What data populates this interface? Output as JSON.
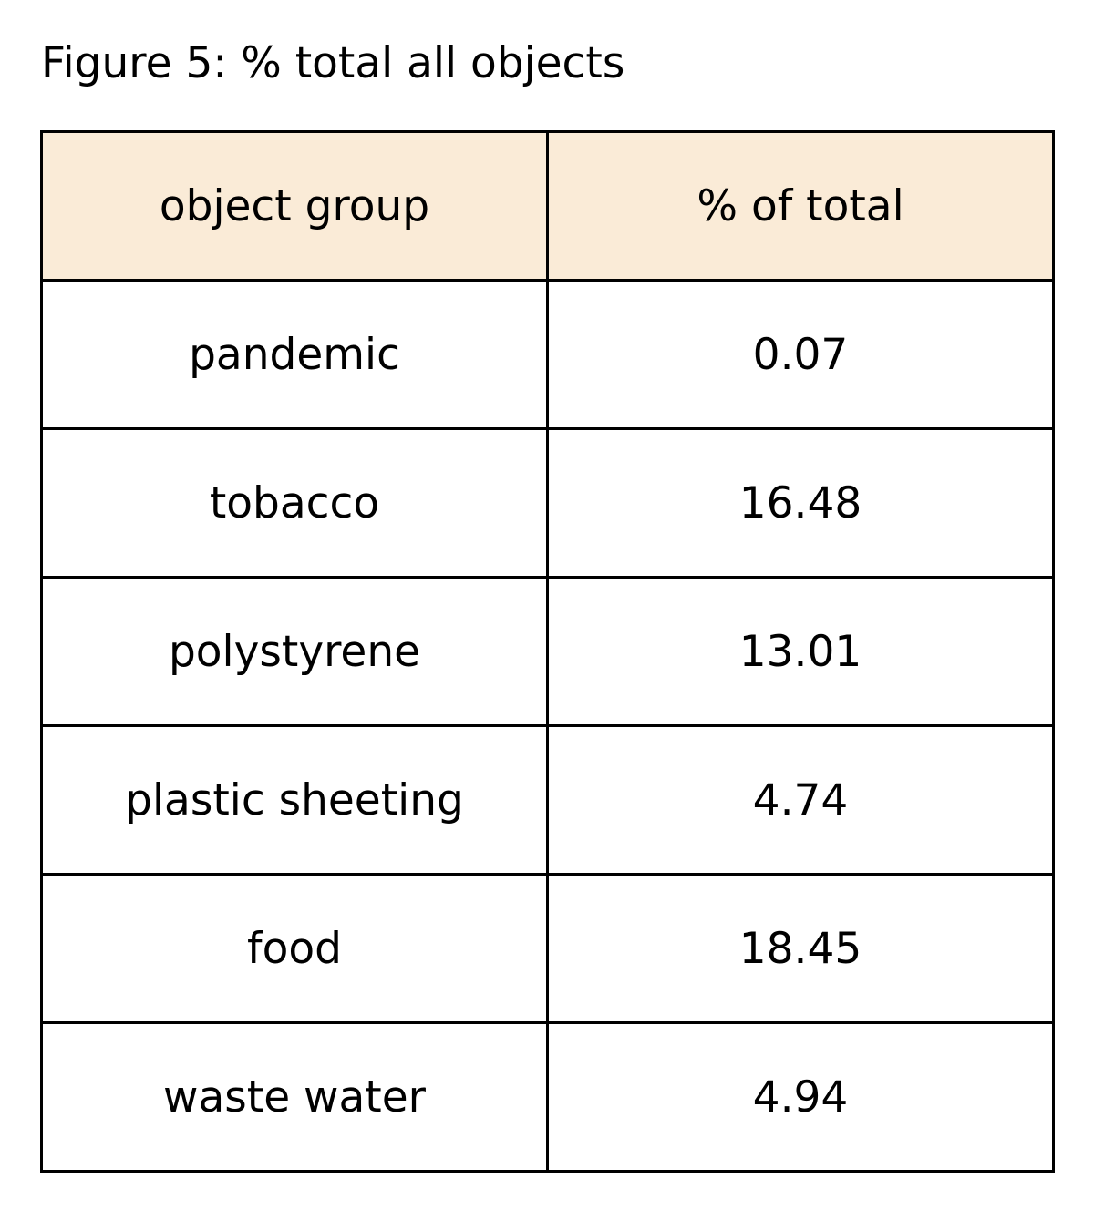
{
  "chart_data": {
    "type": "table",
    "title": "Figure 5: % total all objects",
    "columns": [
      "object group",
      "% of total"
    ],
    "rows": [
      [
        "pandemic",
        "0.07"
      ],
      [
        "tobacco",
        "16.48"
      ],
      [
        "polystyrene",
        "13.01"
      ],
      [
        "plastic sheeting",
        "4.74"
      ],
      [
        "food",
        "18.45"
      ],
      [
        "waste water",
        "4.94"
      ]
    ],
    "header_background": "#faebd7",
    "border_color": "#000000"
  }
}
